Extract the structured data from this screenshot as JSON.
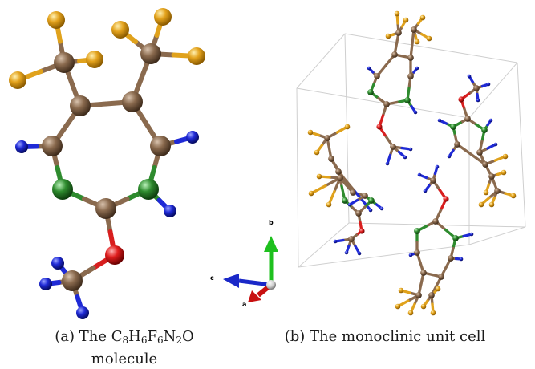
{
  "panels": {
    "a": {
      "tag": "(a)",
      "caption_prefix": "The",
      "formula": [
        {
          "el": "C",
          "n": "8"
        },
        {
          "el": "H",
          "n": "6"
        },
        {
          "el": "F",
          "n": "6"
        },
        {
          "el": "N",
          "n": "2"
        },
        {
          "el": "O",
          "n": ""
        }
      ],
      "caption_line2": "molecule"
    },
    "b": {
      "tag": "(b)",
      "caption": "The monoclinic unit cell"
    }
  },
  "axes": {
    "a": "a",
    "b": "b",
    "c": "c"
  },
  "colors": {
    "carbon": "#8a6a4e",
    "fluorine": "#e0a21c",
    "hydrogen": "#1f2ad6",
    "nitrogen": "#2e8b2e",
    "oxygen": "#d81e1e",
    "axis_a": "#c81010",
    "axis_b": "#1ec01e",
    "axis_c": "#1a28c8",
    "cell_edge": "#cfcfcf"
  }
}
